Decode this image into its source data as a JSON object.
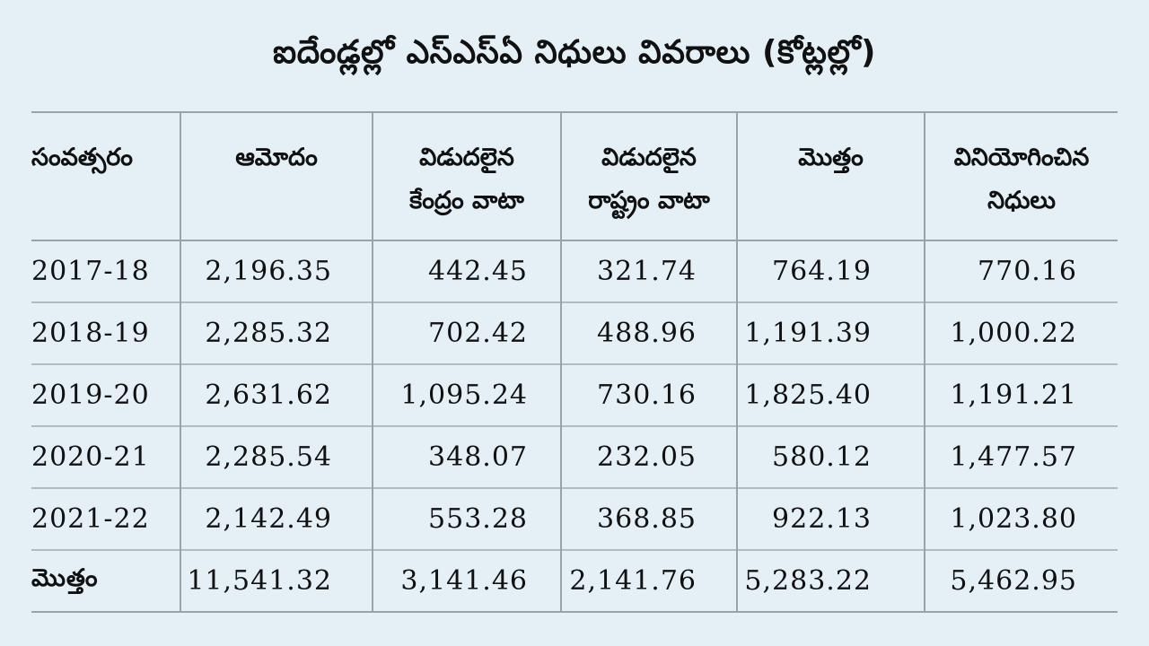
{
  "title": "ఐదేండ్లల్లో ఎస్‌ఎస్‌ఏ నిధులు వివరాలు (కోట్లల్లో)",
  "headers": {
    "year": "సంవత్సరం",
    "approval": "ఆమోదం",
    "central_line1": "విడుదలైన",
    "central_line2": "కేంద్రం వాటా",
    "state_line1": "విడుదలైన",
    "state_line2": "రాష్ట్రం వాటా",
    "total": "మొత్తం",
    "used_line1": "వినియోగించిన",
    "used_line2": "నిధులు"
  },
  "rows": [
    {
      "year": "2017-18",
      "approval": "2,196.35",
      "central": "442.45",
      "state": "321.74",
      "total": "764.19",
      "used": "770.16"
    },
    {
      "year": "2018-19",
      "approval": "2,285.32",
      "central": "702.42",
      "state": "488.96",
      "total": "1,191.39",
      "used": "1,000.22"
    },
    {
      "year": "2019-20",
      "approval": "2,631.62",
      "central": "1,095.24",
      "state": "730.16",
      "total": "1,825.40",
      "used": "1,191.21"
    },
    {
      "year": "2020-21",
      "approval": "2,285.54",
      "central": "348.07",
      "state": "232.05",
      "total": "580.12",
      "used": "1,477.57"
    },
    {
      "year": "2021-22",
      "approval": "2,142.49",
      "central": "553.28",
      "state": "368.85",
      "total": "922.13",
      "used": "1,023.80"
    }
  ],
  "totals": {
    "label": "మొత్తం",
    "approval": "11,541.32",
    "central": "3,141.46",
    "state": "2,141.76",
    "total": "5,283.22",
    "used": "5,462.95"
  }
}
